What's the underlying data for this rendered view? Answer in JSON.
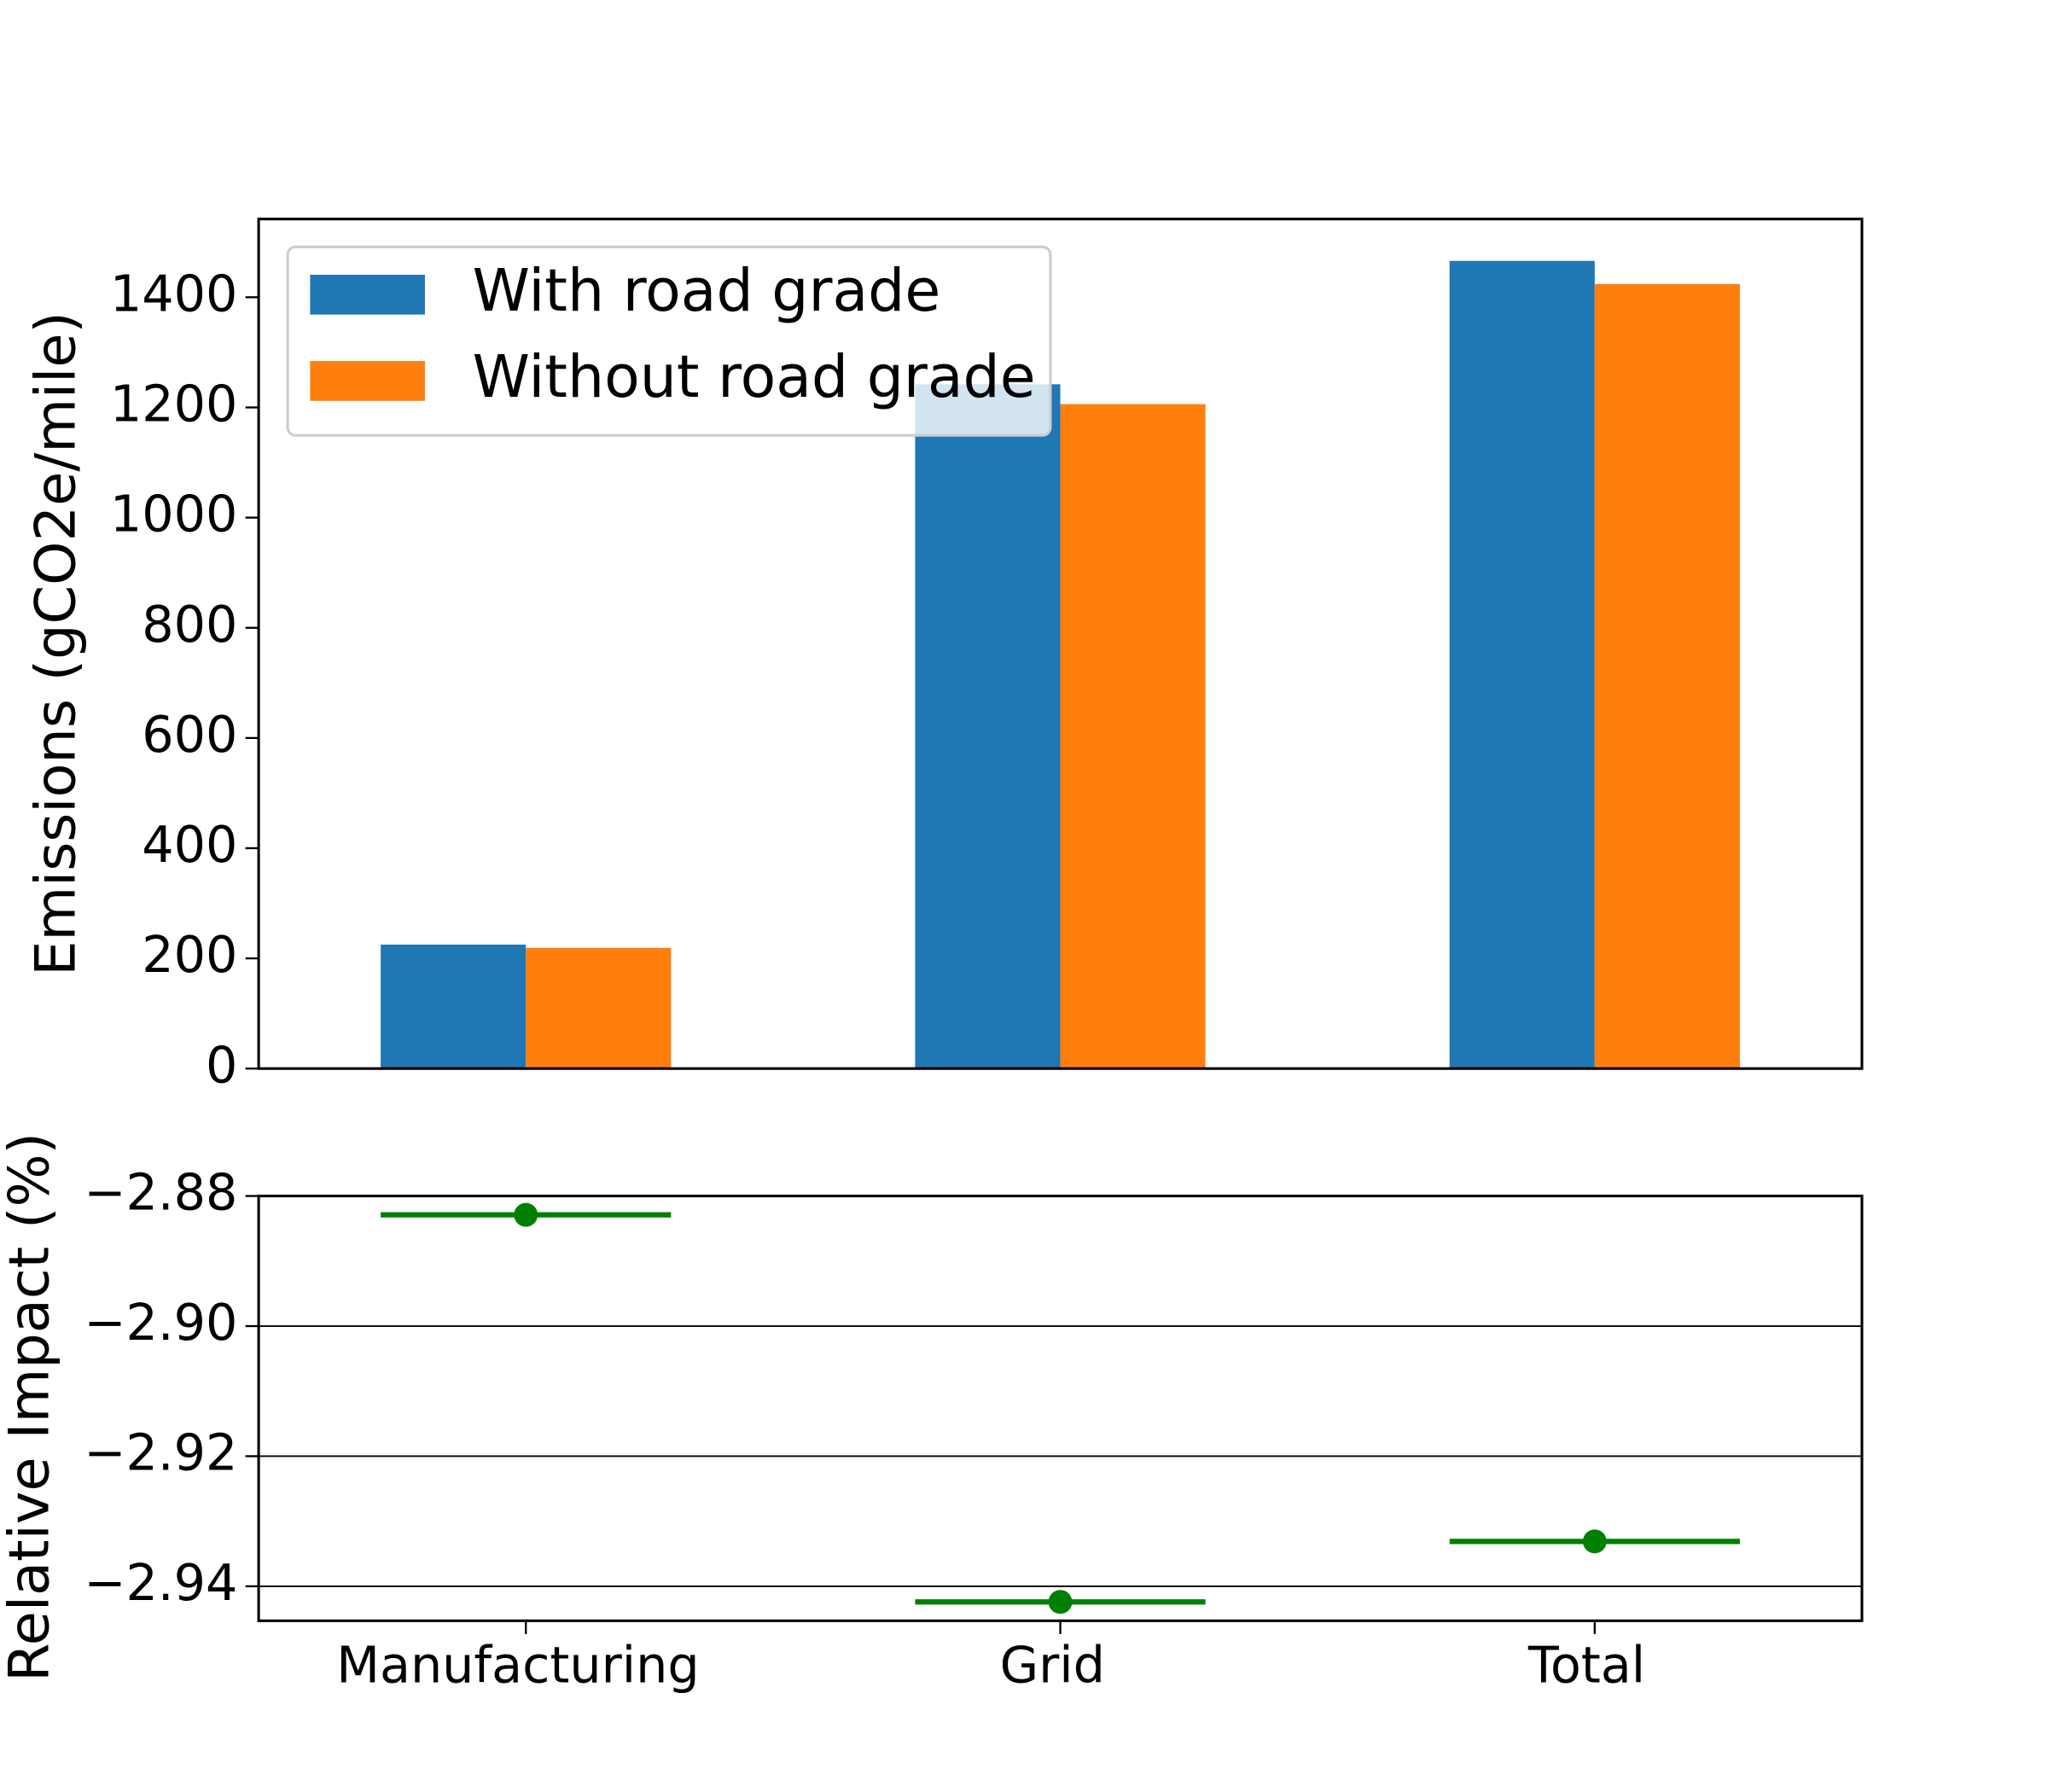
{
  "chart_data": [
    {
      "type": "bar",
      "ylabel": "Emissions (gCO2e/mile)",
      "series": [
        {
          "name": "With road grade",
          "color": "#1f77b4",
          "values": [
            225,
            1242,
            1466
          ]
        },
        {
          "name": "Without road grade",
          "color": "#ff7f0e",
          "values": [
            219,
            1206,
            1424
          ]
        }
      ],
      "ylim": [
        0,
        1542
      ],
      "yticks": [
        0,
        200,
        400,
        600,
        800,
        1000,
        1200,
        1400
      ],
      "grid": false,
      "legend": "upper left"
    },
    {
      "type": "point",
      "ylabel": "Relative Impact (%)",
      "categories": [
        "Manufacturing",
        "Grid",
        "Total"
      ],
      "values": [
        -2.8829,
        -2.9424,
        -2.9331
      ],
      "color": "#008000",
      "ylim": [
        -2.9453,
        -2.88
      ],
      "yticks": [
        {
          "value": -2.88,
          "label": "−2.88"
        },
        {
          "value": -2.9,
          "label": "−2.90"
        },
        {
          "value": -2.92,
          "label": "−2.92"
        },
        {
          "value": -2.94,
          "label": "−2.94"
        }
      ],
      "grid": true
    }
  ]
}
